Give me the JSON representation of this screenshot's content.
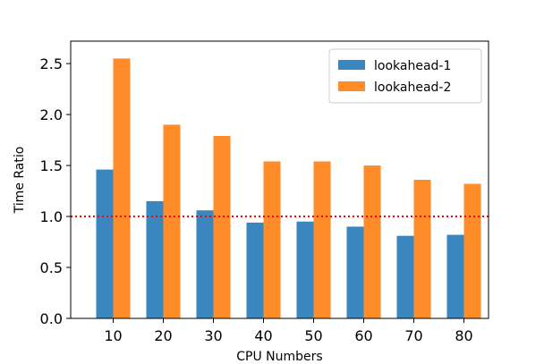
{
  "chart_data": {
    "type": "bar",
    "categories": [
      "10",
      "20",
      "30",
      "40",
      "50",
      "60",
      "70",
      "80"
    ],
    "series": [
      {
        "name": "lookahead-1",
        "color": "#3a87c0",
        "values": [
          1.46,
          1.15,
          1.06,
          0.94,
          0.95,
          0.9,
          0.81,
          0.82
        ]
      },
      {
        "name": "lookahead-2",
        "color": "#ff8c28",
        "values": [
          2.55,
          1.9,
          1.79,
          1.54,
          1.54,
          1.5,
          1.36,
          1.32
        ]
      }
    ],
    "title": "",
    "xlabel": "CPU Numbers",
    "ylabel": "Time Ratio",
    "ylim": [
      0,
      2.72
    ],
    "yticks": [
      "0.0",
      "0.5",
      "1.0",
      "1.5",
      "2.0",
      "2.5"
    ],
    "reference_line": {
      "y": 1.0,
      "color": "#ff0000",
      "style": "dotted"
    },
    "legend_position": "top-right",
    "grid": false
  }
}
